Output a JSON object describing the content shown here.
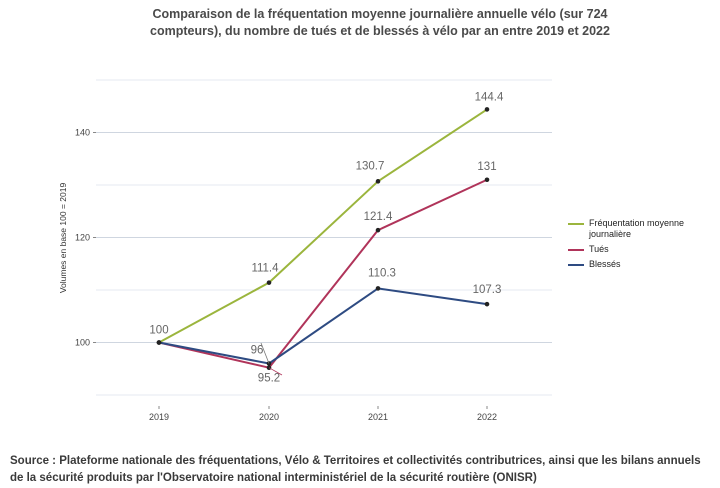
{
  "title": "Comparaison de la fréquentation moyenne journalière annuelle vélo (sur 724 compteurs), du nombre de tués et de blessés à vélo par an entre 2019 et 2022",
  "source": "Source : Plateforme nationale des fréquentations, Vélo & Territoires et collectivités contributrices, ainsi que les bilans annuels de la sécurité produits par l'Observatoire national interministériel de la sécurité routière (ONISR)",
  "chart_data": {
    "type": "line",
    "title": "Comparaison de la fréquentation moyenne journalière annuelle vélo (sur 724 compteurs), du nombre de tués et de blessés à vélo par an entre 2019 et 2022",
    "xlabel": "",
    "ylabel": "Volumes en base 100 = 2019",
    "x": [
      "2019",
      "2020",
      "2021",
      "2022"
    ],
    "ylim": [
      90,
      150
    ],
    "yticks": [
      100,
      120,
      140
    ],
    "grid": true,
    "legend_position": "right",
    "series": [
      {
        "name": "Fréquentation moyenne journalière",
        "color": "#9bb53d",
        "values": [
          100,
          111.4,
          130.7,
          144.4
        ],
        "labels": [
          "100",
          "111.4",
          "130.7",
          "144.4"
        ]
      },
      {
        "name": "Tués",
        "color": "#b0345a",
        "values": [
          100,
          95.2,
          121.4,
          131
        ],
        "labels": [
          "",
          "95.2",
          "121.4",
          "131"
        ]
      },
      {
        "name": "Blessés",
        "color": "#2e4b82",
        "values": [
          100,
          96,
          110.3,
          107.3
        ],
        "labels": [
          "",
          "96",
          "110.3",
          "107.3"
        ]
      }
    ]
  }
}
